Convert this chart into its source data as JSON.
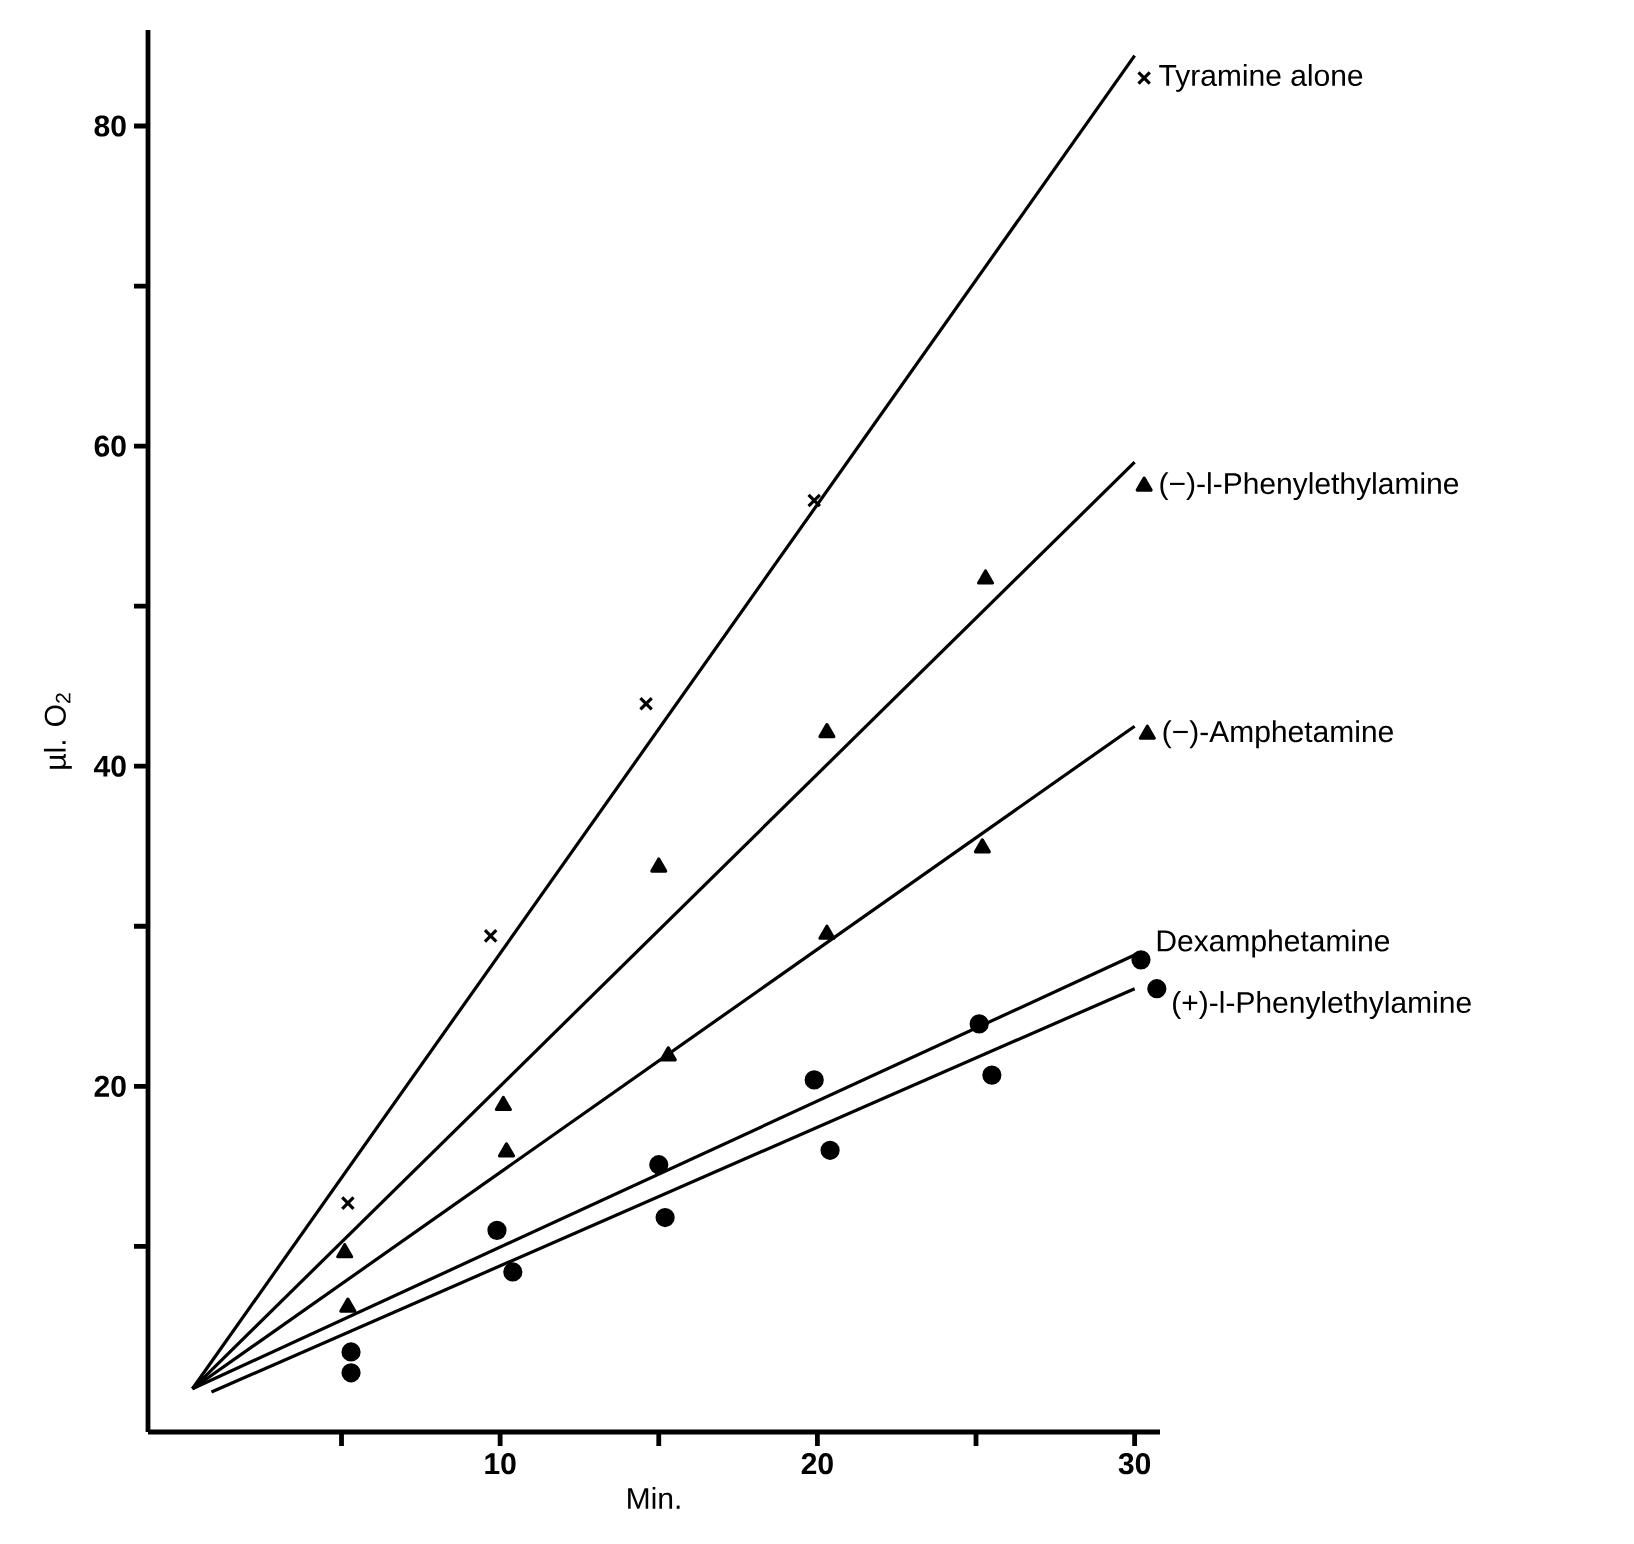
{
  "chart_data": {
    "type": "scatter",
    "xlabel": "Min.",
    "ylabel": "µl. O$_{2}$",
    "xlim": [
      -1.1,
      30.8
    ],
    "ylim": [
      -1.6,
      86
    ],
    "xticks": [
      {
        "value": 5,
        "label": null
      },
      10,
      {
        "value": 15,
        "label": null
      },
      20,
      {
        "value": 25,
        "label": null
      },
      30
    ],
    "yticks": [
      {
        "value": 10,
        "label": null
      },
      20,
      {
        "value": 30,
        "label": null
      },
      40,
      {
        "value": 50,
        "label": null
      },
      60,
      {
        "value": 70,
        "label": null
      },
      80
    ],
    "grid": false,
    "series": [
      {
        "name": "Tyramine alone",
        "marker": "cross",
        "color": "#000000",
        "x": [
          5.2,
          9.7,
          14.6,
          19.9,
          30.3
        ],
        "values": [
          12.7,
          29.4,
          43.9,
          56.6,
          83.0
        ]
      },
      {
        "name": "(−)-l-Phenylethylamine",
        "marker": "triangle",
        "color": "#000000",
        "x": [
          5.1,
          10.1,
          15.0,
          20.3,
          25.3,
          30.3
        ],
        "values": [
          9.6,
          18.8,
          33.7,
          42.1,
          51.7,
          57.5
        ]
      },
      {
        "name": "(−)-Amphetamine",
        "marker": "triangle",
        "color": "#000000",
        "x": [
          5.2,
          10.2,
          15.3,
          20.3,
          25.2,
          30.4
        ],
        "values": [
          6.2,
          15.9,
          21.9,
          29.5,
          34.9,
          42.0
        ]
      },
      {
        "name": "Dexamphetamine",
        "marker": "circle",
        "color": "#000000",
        "x": [
          5.3,
          9.9,
          15.0,
          19.9,
          25.1,
          30.2
        ],
        "values": [
          3.4,
          11.0,
          15.1,
          20.4,
          23.9,
          27.9
        ]
      },
      {
        "name": "(+)-l-Phenylethylamine",
        "marker": "circle",
        "color": "#000000",
        "x": [
          5.3,
          10.4,
          15.2,
          20.4,
          25.5,
          30.7
        ],
        "values": [
          2.1,
          8.4,
          11.8,
          16.0,
          20.7,
          26.1
        ]
      },
      {
        "type": "line",
        "color": "#000000",
        "x": [
          0.3,
          30.0
        ],
        "values": [
          1.1,
          84.4
        ]
      },
      {
        "type": "line",
        "color": "#000000",
        "x": [
          0.3,
          30.0
        ],
        "values": [
          1.1,
          59.0
        ]
      },
      {
        "type": "line",
        "color": "#000000",
        "x": [
          0.3,
          30.0
        ],
        "values": [
          1.1,
          42.5
        ]
      },
      {
        "type": "line",
        "color": "#000000",
        "x": [
          0.3,
          30.0
        ],
        "values": [
          1.1,
          28.2
        ]
      },
      {
        "type": "line",
        "color": "#000000",
        "x": [
          0.9,
          30.0
        ],
        "values": [
          0.9,
          26.1
        ]
      }
    ]
  }
}
